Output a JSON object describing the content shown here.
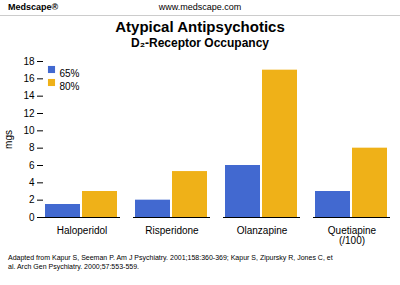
{
  "chart_data": {
    "type": "bar",
    "title": "Atypical Antipsychotics",
    "subtitle": "D₂-Receptor Occupancy",
    "categories": [
      "Haloperidol",
      "Risperidone",
      "Olanzapine",
      "Quetiapine\n(/100)"
    ],
    "series": [
      {
        "name": "65%",
        "values": [
          1.5,
          2.0,
          6.0,
          3.0
        ]
      },
      {
        "name": "80%",
        "values": [
          3.0,
          5.3,
          17.0,
          8.0
        ]
      }
    ],
    "ylabel": "mgs",
    "ylim": [
      0,
      18
    ],
    "yticks": [
      0,
      2,
      4,
      6,
      8,
      10,
      12,
      14,
      16,
      18
    ],
    "grid": false,
    "legend": "upper left",
    "annotations": [
      "Medscape®",
      "www.medscape.com",
      "Adapted from Kapur S, Seeman P. Am J Psychiatry. 2001;158:360-369; Kapur S, Zipursky R, Jones C, et\nal. Arch Gen Psychiatry. 2000;57:553-559."
    ]
  }
}
